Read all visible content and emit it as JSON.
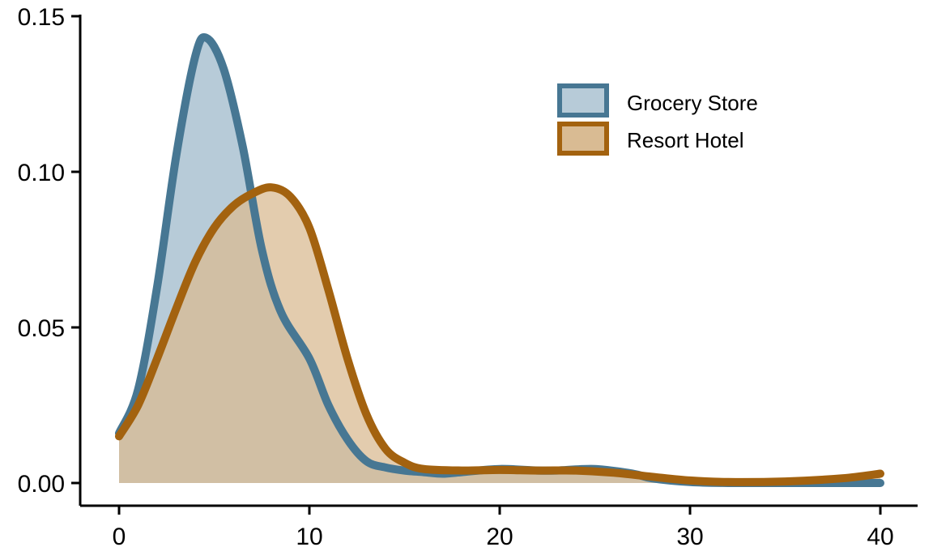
{
  "chart_data": {
    "type": "area",
    "title": "",
    "xlabel": "",
    "ylabel": "",
    "xlim": [
      0,
      40
    ],
    "ylim": [
      0,
      0.15
    ],
    "xticks": [
      0,
      10,
      20,
      30,
      40
    ],
    "xtick_labels": [
      "0",
      "10",
      "20",
      "30",
      "40"
    ],
    "yticks": [
      0,
      0.05,
      0.1,
      0.15
    ],
    "ytick_labels": [
      "0.00",
      "0.05",
      "0.10",
      "0.15"
    ],
    "grid": false,
    "legend_position": "top-right",
    "series": [
      {
        "name": "Grocery Store",
        "line_color": "#477793",
        "fill_color": "#b7cbd8",
        "fill_opacity": 1.0,
        "x": [
          0,
          1,
          2,
          3,
          4,
          4.6,
          5.5,
          6.5,
          7.5,
          8.5,
          10,
          11,
          12,
          13,
          14,
          15,
          16,
          17,
          18,
          20,
          22,
          23,
          25,
          27,
          28,
          30,
          32,
          35,
          38,
          40
        ],
        "y": [
          0.016,
          0.03,
          0.063,
          0.105,
          0.137,
          0.143,
          0.133,
          0.108,
          0.075,
          0.055,
          0.04,
          0.025,
          0.014,
          0.007,
          0.005,
          0.004,
          0.0035,
          0.003,
          0.0035,
          0.0045,
          0.004,
          0.004,
          0.0045,
          0.003,
          0.0015,
          0.0003,
          0.0,
          0.0,
          0.0,
          0.0
        ]
      },
      {
        "name": "Resort Hotel",
        "line_color": "#a3620f",
        "fill_color": "#d9bb93",
        "fill_opacity": 0.75,
        "x": [
          0,
          1,
          2,
          3,
          4,
          5,
          6,
          7,
          8,
          9,
          10,
          11,
          12,
          13,
          14,
          15,
          16,
          18,
          20,
          22,
          24,
          26,
          28,
          30,
          32,
          35,
          38,
          40
        ],
        "y": [
          0.015,
          0.025,
          0.04,
          0.056,
          0.071,
          0.082,
          0.089,
          0.093,
          0.095,
          0.092,
          0.082,
          0.062,
          0.04,
          0.022,
          0.011,
          0.0065,
          0.0045,
          0.004,
          0.0042,
          0.004,
          0.004,
          0.0033,
          0.002,
          0.0008,
          0.0003,
          0.0005,
          0.0015,
          0.003
        ]
      }
    ]
  }
}
